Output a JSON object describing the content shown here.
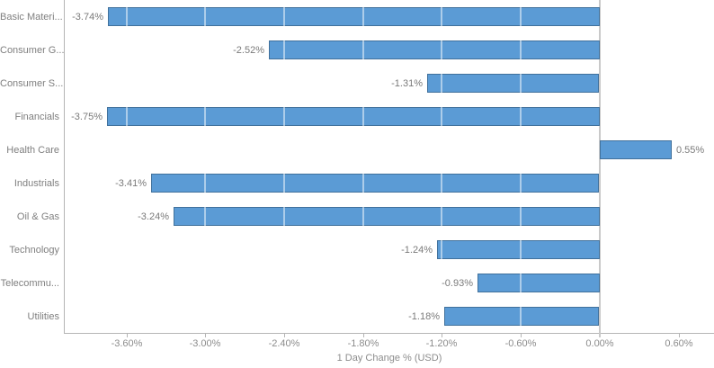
{
  "chart_data": {
    "type": "bar",
    "orientation": "horizontal",
    "title": "",
    "xlabel": "1 Day Change % (USD)",
    "ylabel": "",
    "categories": [
      "Basic Materi...",
      "Consumer G...",
      "Consumer S...",
      "Financials",
      "Health Care",
      "Industrials",
      "Oil & Gas",
      "Technology",
      "Telecommu...",
      "Utilities"
    ],
    "values": [
      -3.74,
      -2.52,
      -1.31,
      -3.75,
      0.55,
      -3.41,
      -3.24,
      -1.24,
      -0.93,
      -1.18
    ],
    "value_labels": [
      "-3.74%",
      "-2.52%",
      "-1.31%",
      "-3.75%",
      "0.55%",
      "-3.41%",
      "-3.24%",
      "-1.24%",
      "-0.93%",
      "-1.18%"
    ],
    "x_ticks": [
      -3.6,
      -3.0,
      -2.4,
      -1.8,
      -1.2,
      -0.6,
      0.0,
      0.6
    ],
    "x_tick_labels": [
      "-3.60%",
      "-3.00%",
      "-2.40%",
      "-1.80%",
      "-1.20%",
      "-0.60%",
      "0.00%",
      "0.60%"
    ],
    "xlim": [
      -4.07,
      0.87
    ],
    "grid": "vertical-white-over-bars",
    "legend": "none",
    "colors": {
      "bar_fill": "#5b9bd5",
      "bar_border": "#41719c",
      "zero_line": "#c9c9c9",
      "axis_line": "#b5b5b5",
      "category_text": "#7f7f7f",
      "value_text": "#7a7a7a",
      "tick_text": "#8c8c8c"
    }
  }
}
